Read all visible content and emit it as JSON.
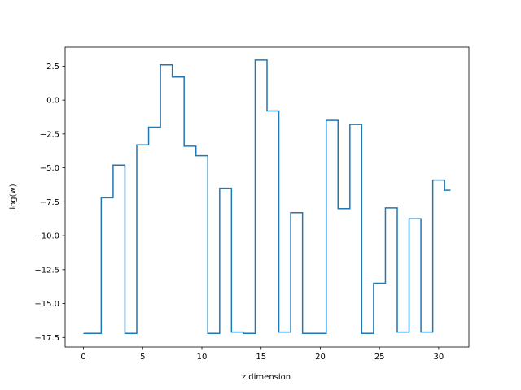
{
  "chart_data": {
    "type": "line",
    "drawstyle": "steps-mid",
    "xlabel": "z dimension",
    "ylabel": "log(w)",
    "xlim": [
      -1.55,
      32.55
    ],
    "ylim": [
      -18.2,
      3.9
    ],
    "xticks": [
      0,
      5,
      10,
      15,
      20,
      25,
      30
    ],
    "xtick_labels": [
      "0",
      "5",
      "10",
      "15",
      "20",
      "25",
      "30"
    ],
    "yticks": [
      2.5,
      0.0,
      -2.5,
      -5.0,
      -7.5,
      -10.0,
      -12.5,
      -15.0,
      -17.5
    ],
    "ytick_labels": [
      "2.5",
      "0.0",
      "−2.5",
      "−5.0",
      "−7.5",
      "−10.0",
      "−12.5",
      "−15.0",
      "−17.5"
    ],
    "grid": false,
    "color": "#1f77b4",
    "x": [
      0,
      1,
      2,
      3,
      4,
      5,
      6,
      7,
      8,
      9,
      10,
      11,
      12,
      13,
      14,
      15,
      16,
      17,
      18,
      19,
      20,
      21,
      22,
      23,
      24,
      25,
      26,
      27,
      28,
      29,
      30,
      31
    ],
    "y": [
      -17.2,
      -17.2,
      -7.2,
      -4.8,
      -17.2,
      -3.3,
      -2.0,
      2.6,
      1.7,
      -3.4,
      -4.1,
      -17.2,
      -6.5,
      -17.1,
      -17.2,
      2.95,
      -0.8,
      -17.1,
      -8.3,
      -17.2,
      -17.2,
      -1.5,
      -8.0,
      -1.8,
      -17.2,
      -13.5,
      -7.95,
      -17.1,
      -8.75,
      -17.1,
      -5.9,
      -6.65
    ]
  }
}
